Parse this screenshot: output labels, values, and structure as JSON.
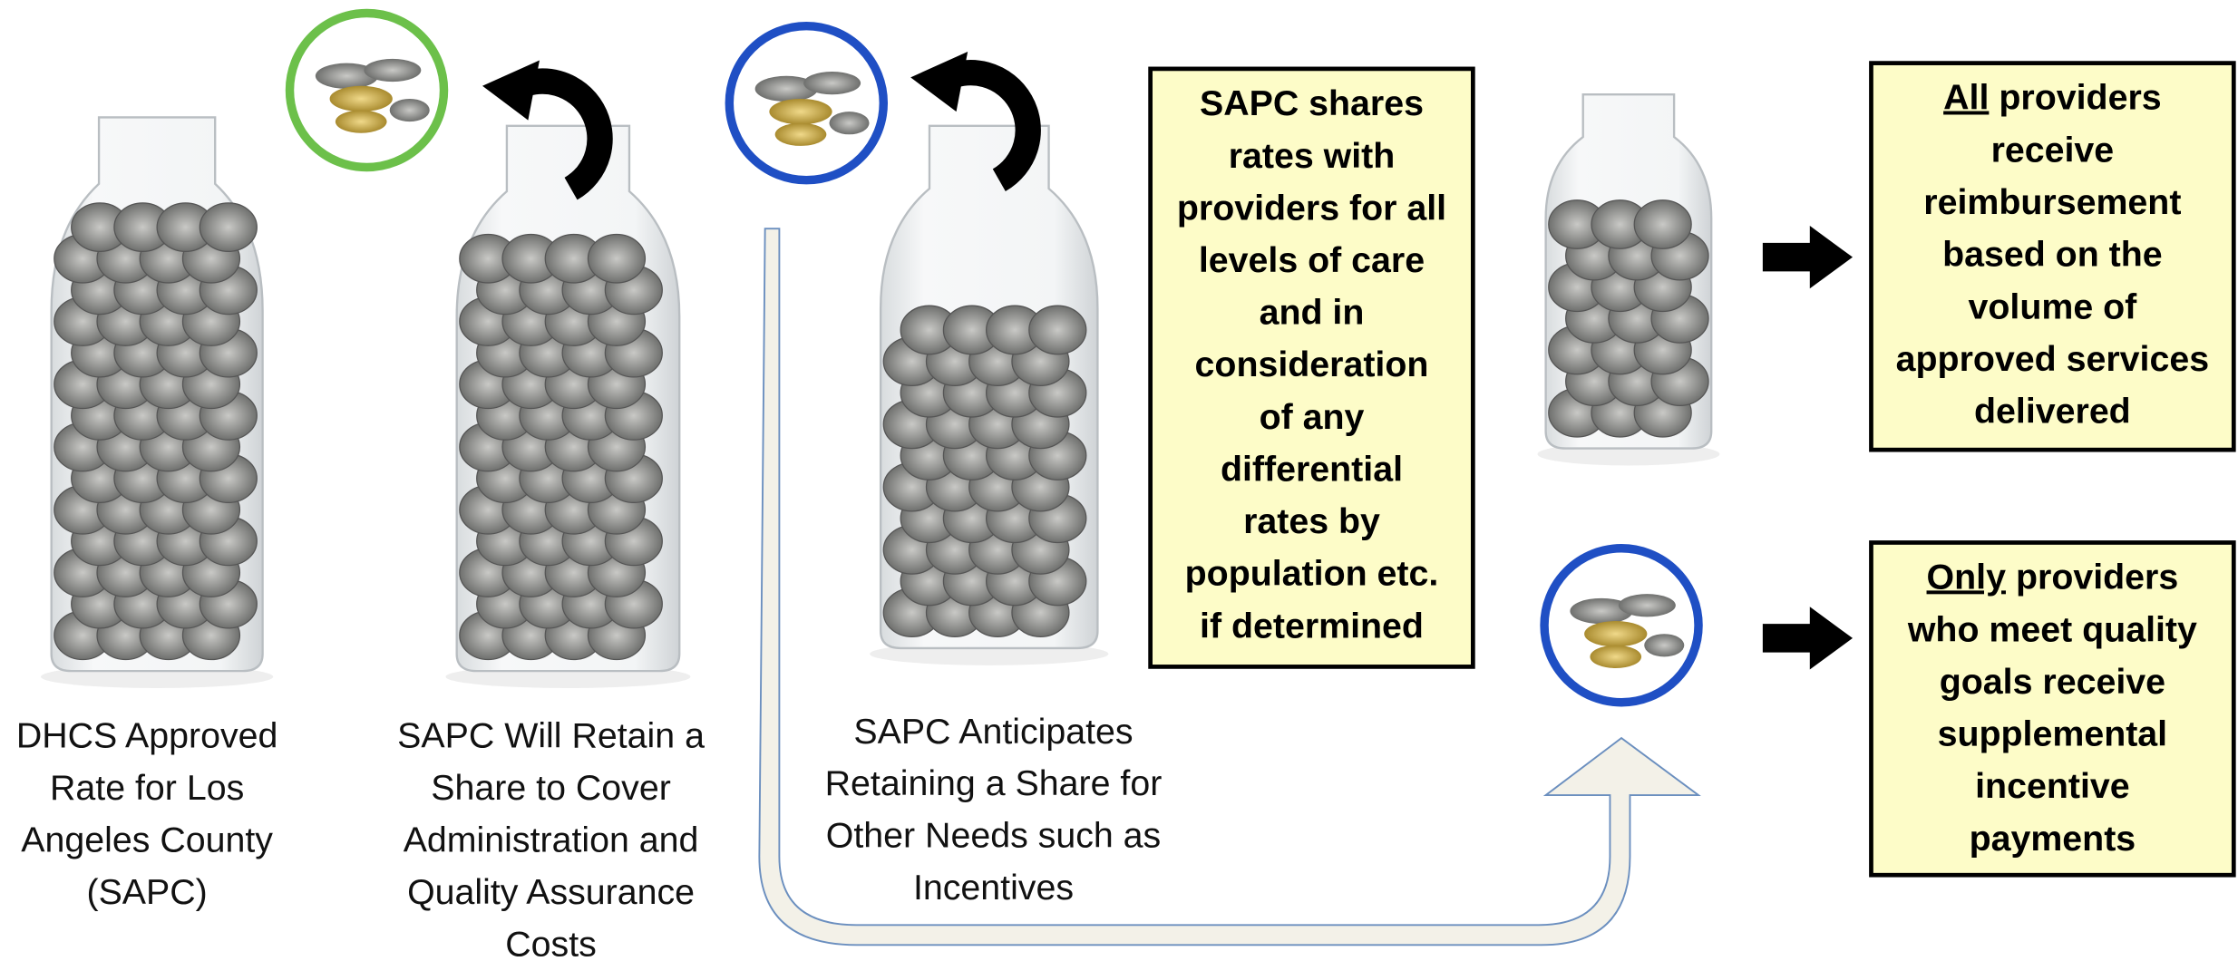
{
  "captions": [
    {
      "lines": [
        "DHCS Approved",
        "Rate for Los",
        "Angeles County",
        "(SAPC)"
      ]
    },
    {
      "lines": [
        "SAPC Will Retain a",
        "Share to Cover",
        "Administration and",
        "Quality Assurance",
        "Costs"
      ]
    },
    {
      "lines": [
        "SAPC Anticipates",
        "Retaining a Share for",
        "Other Needs such as",
        "Incentives"
      ]
    }
  ],
  "boxes": [
    {
      "lines": [
        "SAPC shares",
        "rates with",
        "providers for all",
        "levels of care",
        "and in",
        "consideration",
        "of any",
        "differential",
        "rates by",
        "population etc.",
        "if determined"
      ]
    },
    {
      "emphasis": "All",
      "lines": [
        "providers",
        "receive",
        "reimbursement",
        "based on the",
        "volume of",
        "approved services",
        "delivered"
      ]
    },
    {
      "emphasis": "Only",
      "lines": [
        "providers",
        "who meet quality",
        "goals receive",
        "supplemental",
        "incentive",
        "payments"
      ]
    }
  ]
}
